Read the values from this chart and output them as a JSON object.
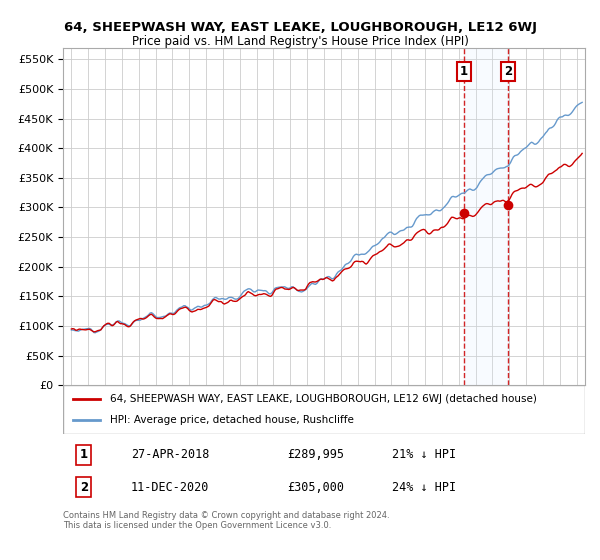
{
  "title": "64, SHEEPWASH WAY, EAST LEAKE, LOUGHBOROUGH, LE12 6WJ",
  "subtitle": "Price paid vs. HM Land Registry's House Price Index (HPI)",
  "ylim": [
    0,
    570000
  ],
  "yticks": [
    0,
    50000,
    100000,
    150000,
    200000,
    250000,
    300000,
    350000,
    400000,
    450000,
    500000,
    550000
  ],
  "xlim_start": 1994.5,
  "xlim_end": 2025.5,
  "sale1_x": 2018.32,
  "sale1_y": 289995,
  "sale1_label": "1",
  "sale1_date": "27-APR-2018",
  "sale1_price": "£289,995",
  "sale1_hpi": "21% ↓ HPI",
  "sale2_x": 2020.95,
  "sale2_y": 305000,
  "sale2_label": "2",
  "sale2_date": "11-DEC-2020",
  "sale2_price": "£305,000",
  "sale2_hpi": "24% ↓ HPI",
  "legend_line1": "64, SHEEPWASH WAY, EAST LEAKE, LOUGHBOROUGH, LE12 6WJ (detached house)",
  "legend_line2": "HPI: Average price, detached house, Rushcliffe",
  "footer": "Contains HM Land Registry data © Crown copyright and database right 2024.\nThis data is licensed under the Open Government Licence v3.0.",
  "hpi_color": "#6699cc",
  "sale_color": "#cc0000",
  "bg_color": "#ffffff",
  "grid_color": "#cccccc",
  "shade_color": "#ddeeff",
  "title_fontsize": 9.5,
  "subtitle_fontsize": 8.5
}
